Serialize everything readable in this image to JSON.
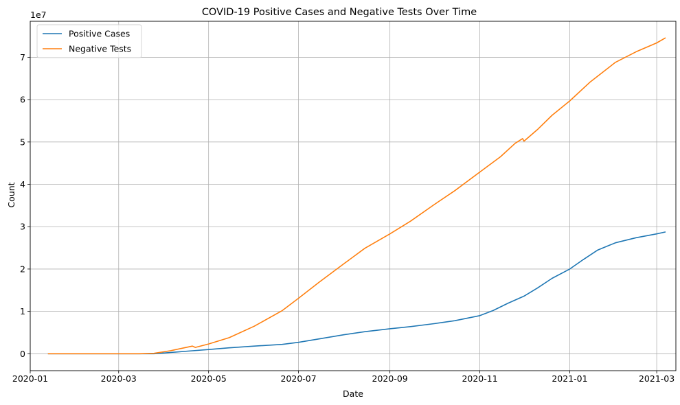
{
  "chart_data": {
    "type": "line",
    "title": "COVID-19 Positive Cases and Negative Tests Over Time",
    "xlabel": "Date",
    "ylabel": "Count",
    "y_offset_label": "1e7",
    "x_ticks": [
      "2020-01",
      "2020-03",
      "2020-05",
      "2020-07",
      "2020-09",
      "2020-11",
      "2021-01",
      "2021-03"
    ],
    "y_ticks": [
      "0",
      "1",
      "2",
      "3",
      "4",
      "5",
      "6",
      "7"
    ],
    "xlim": [
      "2020-01-01",
      "2021-03-14"
    ],
    "ylim": [
      -4000000,
      78500000
    ],
    "grid": true,
    "legend_position": "top-left",
    "series": [
      {
        "name": "Positive Cases",
        "color": "#1f77b4",
        "points": [
          [
            "2020-01-13",
            0
          ],
          [
            "2020-02-15",
            0
          ],
          [
            "2020-03-15",
            0
          ],
          [
            "2020-03-25",
            0
          ],
          [
            "2020-04-05",
            300000
          ],
          [
            "2020-04-20",
            700000
          ],
          [
            "2020-05-01",
            1000000
          ],
          [
            "2020-05-15",
            1400000
          ],
          [
            "2020-06-01",
            1800000
          ],
          [
            "2020-06-20",
            2200000
          ],
          [
            "2020-07-01",
            2700000
          ],
          [
            "2020-07-15",
            3500000
          ],
          [
            "2020-08-01",
            4500000
          ],
          [
            "2020-08-15",
            5200000
          ],
          [
            "2020-09-01",
            5900000
          ],
          [
            "2020-09-15",
            6400000
          ],
          [
            "2020-10-01",
            7100000
          ],
          [
            "2020-10-15",
            7800000
          ],
          [
            "2020-11-01",
            9000000
          ],
          [
            "2020-11-10",
            10200000
          ],
          [
            "2020-11-20",
            11900000
          ],
          [
            "2020-12-01",
            13600000
          ],
          [
            "2020-12-10",
            15500000
          ],
          [
            "2020-12-20",
            17800000
          ],
          [
            "2021-01-01",
            20000000
          ],
          [
            "2021-01-10",
            22200000
          ],
          [
            "2021-01-20",
            24500000
          ],
          [
            "2021-02-01",
            26200000
          ],
          [
            "2021-02-15",
            27400000
          ],
          [
            "2021-03-01",
            28300000
          ],
          [
            "2021-03-07",
            28750000
          ]
        ]
      },
      {
        "name": "Negative Tests",
        "color": "#ff7f0e",
        "points": [
          [
            "2020-01-13",
            0
          ],
          [
            "2020-02-15",
            0
          ],
          [
            "2020-03-15",
            0
          ],
          [
            "2020-03-25",
            100000
          ],
          [
            "2020-04-05",
            700000
          ],
          [
            "2020-04-20",
            1800000
          ],
          [
            "2020-04-22",
            1500000
          ],
          [
            "2020-05-01",
            2300000
          ],
          [
            "2020-05-15",
            3800000
          ],
          [
            "2020-06-01",
            6500000
          ],
          [
            "2020-06-20",
            10200000
          ],
          [
            "2020-07-01",
            13100000
          ],
          [
            "2020-07-15",
            16900000
          ],
          [
            "2020-08-01",
            21300000
          ],
          [
            "2020-08-15",
            24900000
          ],
          [
            "2020-09-01",
            28300000
          ],
          [
            "2020-09-15",
            31300000
          ],
          [
            "2020-10-01",
            35200000
          ],
          [
            "2020-10-15",
            38500000
          ],
          [
            "2020-11-01",
            42900000
          ],
          [
            "2020-11-15",
            46500000
          ],
          [
            "2020-11-25",
            49700000
          ],
          [
            "2020-11-30",
            50800000
          ],
          [
            "2020-12-01",
            50200000
          ],
          [
            "2020-12-10",
            52900000
          ],
          [
            "2020-12-20",
            56300000
          ],
          [
            "2021-01-01",
            59700000
          ],
          [
            "2021-01-15",
            64200000
          ],
          [
            "2021-02-01",
            68800000
          ],
          [
            "2021-02-15",
            71300000
          ],
          [
            "2021-03-01",
            73400000
          ],
          [
            "2021-03-07",
            74600000
          ]
        ]
      }
    ]
  }
}
